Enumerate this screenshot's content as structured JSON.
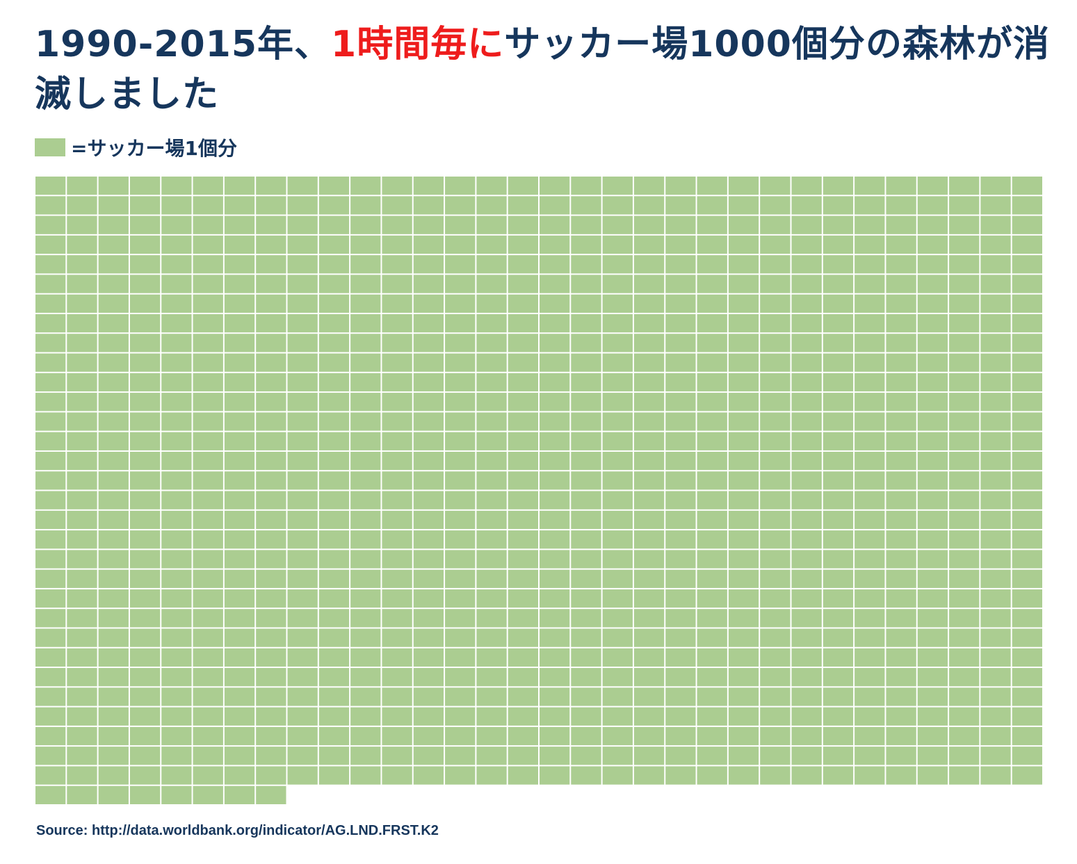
{
  "chart_data": {
    "type": "waffle",
    "title_parts": [
      {
        "text": "1990-2015年、",
        "color": "#16365c"
      },
      {
        "text": "1時間毎に",
        "color": "#ee1c1c"
      },
      {
        "text": "サッカー場1000個分の森林が消滅しました",
        "color": "#16365c"
      }
    ],
    "legend_label": "=サッカー場1個分",
    "values": [
      1000
    ],
    "color": "#abcd91",
    "source": "Source: http://data.worldbank.org/indicator/AG.LND.FRST.K2"
  }
}
